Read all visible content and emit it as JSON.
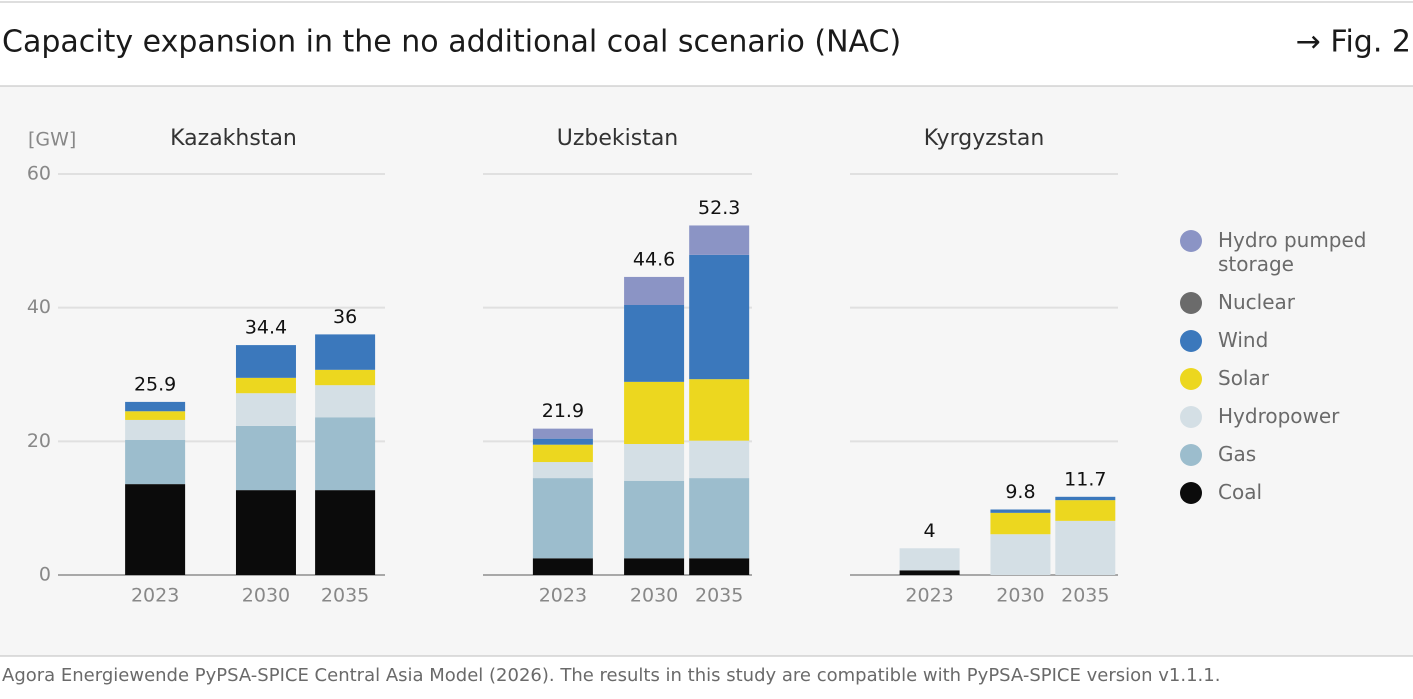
{
  "header": {
    "title": "Capacity expansion in the no additional coal scenario (NAC)",
    "figure": "→ Fig. 2"
  },
  "footer": "Agora Energiewende PyPSA-SPICE Central Asia Model (2026). The results in this study are compatible with PyPSA-SPICE version v1.1.1.",
  "chart_data": [
    {
      "type": "bar",
      "stacked": true,
      "title": "Kazakhstan",
      "y_label": "[GW]",
      "categories": [
        "2023",
        "2030",
        "2035"
      ],
      "ylim": [
        0,
        60
      ],
      "yticks": [
        0,
        20,
        40,
        60
      ],
      "grid": true,
      "totals": [
        25.9,
        34.4,
        36
      ],
      "series": [
        {
          "name": "Coal",
          "color": "#0b0b0b",
          "values": [
            13.6,
            12.7,
            12.7
          ]
        },
        {
          "name": "Gas",
          "color": "#9cbdcd",
          "values": [
            6.6,
            9.6,
            10.9
          ]
        },
        {
          "name": "Hydropower",
          "color": "#d4dfe5",
          "values": [
            3.0,
            4.9,
            4.8
          ]
        },
        {
          "name": "Solar",
          "color": "#ecd71f",
          "values": [
            1.3,
            2.3,
            2.3
          ]
        },
        {
          "name": "Wind",
          "color": "#3b78bc",
          "values": [
            1.4,
            4.9,
            5.3
          ]
        },
        {
          "name": "Nuclear",
          "color": "#6b6b6b",
          "values": [
            0,
            0,
            0
          ]
        },
        {
          "name": "Hydro pumped storage",
          "color": "#8b94c5",
          "values": [
            0,
            0,
            0
          ]
        }
      ]
    },
    {
      "type": "bar",
      "stacked": true,
      "title": "Uzbekistan",
      "categories": [
        "2023",
        "2030",
        "2035"
      ],
      "ylim": [
        0,
        60
      ],
      "yticks": [
        0,
        20,
        40,
        60
      ],
      "grid": true,
      "totals": [
        21.9,
        44.6,
        52.3
      ],
      "series": [
        {
          "name": "Coal",
          "color": "#0b0b0b",
          "values": [
            2.5,
            2.5,
            2.5
          ]
        },
        {
          "name": "Gas",
          "color": "#9cbdcd",
          "values": [
            12.0,
            11.6,
            12.0
          ]
        },
        {
          "name": "Hydropower",
          "color": "#d4dfe5",
          "values": [
            2.4,
            5.5,
            5.6
          ]
        },
        {
          "name": "Solar",
          "color": "#ecd71f",
          "values": [
            2.6,
            9.3,
            9.2
          ]
        },
        {
          "name": "Wind",
          "color": "#3b78bc",
          "values": [
            0.9,
            11.5,
            18.6
          ]
        },
        {
          "name": "Nuclear",
          "color": "#6b6b6b",
          "values": [
            0,
            0,
            0
          ]
        },
        {
          "name": "Hydro pumped storage",
          "color": "#8b94c5",
          "values": [
            1.5,
            4.2,
            4.4
          ]
        }
      ]
    },
    {
      "type": "bar",
      "stacked": true,
      "title": "Kyrgyzstan",
      "categories": [
        "2023",
        "2030",
        "2035"
      ],
      "ylim": [
        0,
        60
      ],
      "yticks": [
        0,
        20,
        40,
        60
      ],
      "grid": true,
      "totals": [
        4,
        9.8,
        11.7
      ],
      "series": [
        {
          "name": "Coal",
          "color": "#0b0b0b",
          "values": [
            0.7,
            0,
            0
          ]
        },
        {
          "name": "Gas",
          "color": "#9cbdcd",
          "values": [
            0,
            0,
            0
          ]
        },
        {
          "name": "Hydropower",
          "color": "#d4dfe5",
          "values": [
            3.3,
            6.1,
            8.1
          ]
        },
        {
          "name": "Solar",
          "color": "#ecd71f",
          "values": [
            0,
            3.2,
            3.1
          ]
        },
        {
          "name": "Wind",
          "color": "#3b78bc",
          "values": [
            0,
            0.5,
            0.5
          ]
        },
        {
          "name": "Nuclear",
          "color": "#6b6b6b",
          "values": [
            0,
            0,
            0
          ]
        },
        {
          "name": "Hydro pumped storage",
          "color": "#8b94c5",
          "values": [
            0,
            0,
            0
          ]
        }
      ]
    }
  ]
}
